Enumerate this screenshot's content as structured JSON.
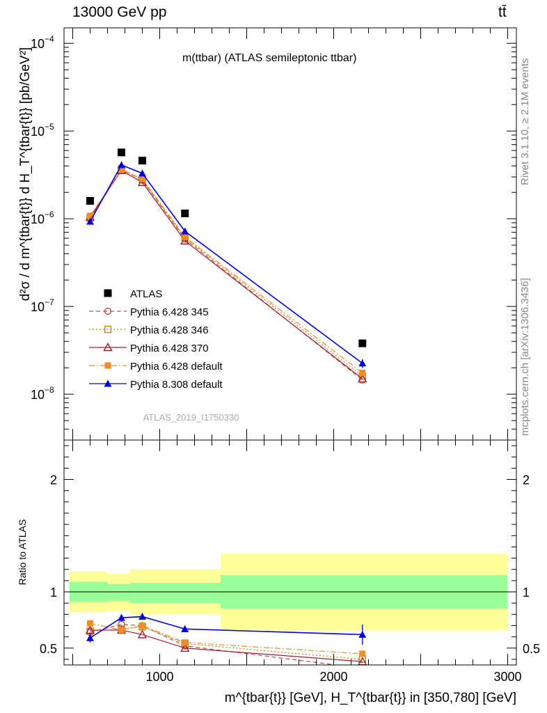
{
  "header": {
    "energy_label": "13000 GeV pp",
    "process_label": "tt̄"
  },
  "side_labels": {
    "rivet": "Rivet 3.1.10, ≥ 2.1M events",
    "mcplots": "mcplots.cern.ch [arXiv:1306.3436]"
  },
  "chart_data": [
    {
      "type": "scatter",
      "title": "m(ttbar) (ATLAS semileptonic ttbar)",
      "watermark": "ATLAS_2019_I1750330",
      "ylabel": "d²σ / d m^{tbar{t}} d H_T^{tbar{t}} [pb/GeV²]",
      "yscale": "log",
      "ylim": [
        3e-09,
        0.00015
      ],
      "xlim": [
        450,
        3050
      ],
      "yticks": [
        {
          "value": 1e-08,
          "mant": "10",
          "exp": "−8"
        },
        {
          "value": 1e-07,
          "mant": "10",
          "exp": "−7"
        },
        {
          "value": 1e-06,
          "mant": "10",
          "exp": "−6"
        },
        {
          "value": 1e-05,
          "mant": "10",
          "exp": "−5"
        },
        {
          "value": 0.0001,
          "mant": "10",
          "exp": "−4"
        }
      ],
      "legend_position": "lower-left",
      "series": [
        {
          "name": "ATLAS",
          "color": "#000000",
          "marker": "square-filled",
          "line": "none",
          "x": [
            600,
            780,
            900,
            1145,
            2165
          ],
          "y": [
            1.6e-06,
            5.7e-06,
            4.6e-06,
            1.15e-06,
            3.8e-08
          ]
        },
        {
          "name": "Pythia 6.428 345",
          "color": "#c0504d",
          "marker": "circle-open",
          "line": "dashed",
          "x": [
            600,
            780,
            900,
            1145,
            2165
          ],
          "y": [
            1e-06,
            3.65e-06,
            2.75e-06,
            5.9e-07,
            1.45e-08
          ]
        },
        {
          "name": "Pythia 6.428 346",
          "color": "#b8860b",
          "marker": "square-open",
          "line": "dotted",
          "x": [
            600,
            780,
            900,
            1145,
            2165
          ],
          "y": [
            1.02e-06,
            3.7e-06,
            2.8e-06,
            6.1e-07,
            1.6e-08
          ]
        },
        {
          "name": "Pythia 6.428 370",
          "color": "#a01c2c",
          "marker": "triangle-open",
          "line": "solid",
          "x": [
            600,
            780,
            900,
            1145,
            2165
          ],
          "y": [
            1.05e-06,
            3.55e-06,
            2.6e-06,
            5.6e-07,
            1.5e-08
          ]
        },
        {
          "name": "Pythia 6.428 default",
          "color": "#f28c28",
          "marker": "square-filled",
          "line": "dashdot",
          "x": [
            600,
            780,
            900,
            1145,
            2165
          ],
          "y": [
            1.08e-06,
            3.6e-06,
            2.85e-06,
            6.2e-07,
            1.75e-08
          ]
        },
        {
          "name": "Pythia 8.308 default",
          "color": "#0000dd",
          "marker": "triangle-filled",
          "line": "solid",
          "x": [
            600,
            780,
            900,
            1145,
            2165
          ],
          "y": [
            9.3e-07,
            4.1e-06,
            3.3e-06,
            7.2e-07,
            2.25e-08
          ],
          "yerr": [
            5e-08,
            2e-07,
            1.5e-07,
            3e-08,
            2.6e-09
          ]
        }
      ]
    },
    {
      "type": "scatter",
      "ylabel": "Ratio to ATLAS",
      "xlabel": "m^{tbar{t}} [GeV], H_T^{tbar{t}} in [350,780] [GeV]",
      "ylim": [
        0.35,
        2.35
      ],
      "xlim": [
        450,
        3050
      ],
      "xticks": [
        1000,
        2000,
        3000
      ],
      "yticks": [
        0.5,
        1,
        2
      ],
      "bands": {
        "bins": [
          [
            480,
            700
          ],
          [
            700,
            830
          ],
          [
            830,
            1350
          ],
          [
            1350,
            3000
          ]
        ],
        "green": [
          [
            0.91,
            1.09
          ],
          [
            0.92,
            1.07
          ],
          [
            0.9,
            1.08
          ],
          [
            0.85,
            1.15
          ]
        ],
        "yellow": [
          [
            0.82,
            1.18
          ],
          [
            0.83,
            1.16
          ],
          [
            0.8,
            1.2
          ],
          [
            0.66,
            1.34
          ]
        ]
      },
      "series": [
        {
          "name": "Pythia 6.428 345",
          "x": [
            600,
            780,
            900,
            1145,
            2165
          ],
          "y": [
            0.64,
            0.71,
            0.7,
            0.52,
            0.32
          ]
        },
        {
          "name": "Pythia 6.428 346",
          "x": [
            600,
            780,
            900,
            1145,
            2165
          ],
          "y": [
            0.65,
            0.67,
            0.69,
            0.54,
            0.4
          ]
        },
        {
          "name": "Pythia 6.428 370",
          "x": [
            600,
            780,
            900,
            1145,
            2165
          ],
          "y": [
            0.66,
            0.66,
            0.62,
            0.5,
            0.38
          ]
        },
        {
          "name": "Pythia 6.428 default",
          "x": [
            600,
            780,
            900,
            1145,
            2165
          ],
          "y": [
            0.72,
            0.66,
            0.7,
            0.55,
            0.45
          ]
        },
        {
          "name": "Pythia 8.308 default",
          "x": [
            600,
            780,
            900,
            1145,
            2165
          ],
          "y": [
            0.59,
            0.77,
            0.78,
            0.67,
            0.62
          ],
          "yerr": [
            0.04,
            0.03,
            0.03,
            0.03,
            0.09
          ]
        }
      ]
    }
  ]
}
